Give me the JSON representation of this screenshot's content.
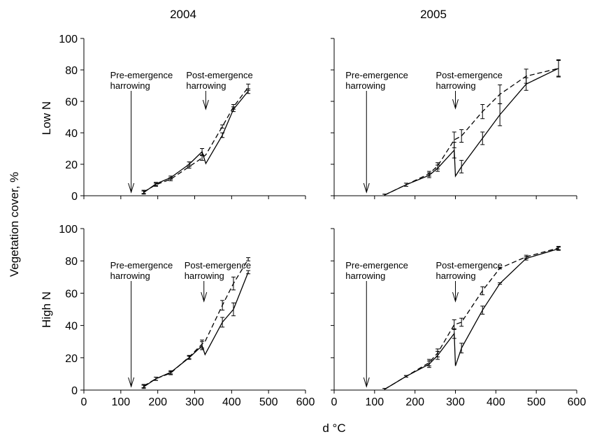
{
  "figure": {
    "ylabel": "Vegetation cover, %",
    "xlabel": "d °C",
    "col_titles": [
      "2004",
      "2005"
    ],
    "row_titles": [
      "Low N",
      "High N"
    ]
  },
  "chart_data": [
    {
      "type": "line",
      "year": "2004",
      "nitrogen": "Low N",
      "xlim": [
        0,
        600
      ],
      "ylim": [
        0,
        100
      ],
      "xticks": [
        0,
        100,
        200,
        300,
        400,
        500,
        600
      ],
      "yticks": [
        0,
        20,
        40,
        60,
        80,
        100
      ],
      "annotations": [
        {
          "lines": [
            "Pre-emergence",
            "harrowing"
          ],
          "x": 128
        },
        {
          "lines": [
            "Post-emergence",
            "harrowing"
          ],
          "x": 330
        }
      ],
      "series": [
        {
          "style": "solid",
          "points": [
            [
              162,
              2
            ],
            [
              195,
              7.5
            ],
            [
              235,
              11.5
            ],
            [
              285,
              20
            ],
            [
              320,
              28
            ],
            [
              330,
              20.5
            ],
            [
              375,
              38.5
            ],
            [
              405,
              55
            ],
            [
              445,
              66.5
            ]
          ],
          "err": [
            1,
            1,
            1,
            1.5,
            2,
            0,
            1.5,
            1.5,
            1.5
          ]
        },
        {
          "style": "dashed",
          "points": [
            [
              162,
              2.5
            ],
            [
              195,
              7
            ],
            [
              235,
              10.5
            ],
            [
              285,
              18.5
            ],
            [
              320,
              24
            ],
            [
              330,
              26
            ],
            [
              375,
              44
            ],
            [
              405,
              56.5
            ],
            [
              445,
              69
            ]
          ],
          "err": [
            1,
            1,
            1,
            1,
            1.5,
            0,
            1,
            1.5,
            2
          ]
        }
      ]
    },
    {
      "type": "line",
      "year": "2005",
      "nitrogen": "Low N",
      "xlim": [
        0,
        600
      ],
      "ylim": [
        0,
        100
      ],
      "xticks": [
        0,
        100,
        200,
        300,
        400,
        500,
        600
      ],
      "yticks": [
        0,
        20,
        40,
        60,
        80,
        100
      ],
      "annotations": [
        {
          "lines": [
            "Pre-emergence",
            "harrowing"
          ],
          "x": 80
        },
        {
          "lines": [
            "Post-emergence",
            "harrowing"
          ],
          "x": 300
        }
      ],
      "series": [
        {
          "style": "solid",
          "points": [
            [
              125,
              0.5
            ],
            [
              178,
              7
            ],
            [
              235,
              13
            ],
            [
              256,
              17.5
            ],
            [
              297,
              29
            ],
            [
              300,
              12.5
            ],
            [
              315,
              18.5
            ],
            [
              367,
              36.5
            ],
            [
              410,
              51.5
            ],
            [
              475,
              71
            ],
            [
              555,
              81
            ]
          ],
          "err": [
            0.5,
            1,
            1.5,
            2,
            5,
            0,
            4,
            4,
            7,
            4,
            5
          ]
        },
        {
          "style": "dashed",
          "points": [
            [
              125,
              0.5
            ],
            [
              178,
              7
            ],
            [
              235,
              14
            ],
            [
              256,
              19
            ],
            [
              297,
              35.5
            ],
            [
              315,
              38
            ],
            [
              367,
              53.5
            ],
            [
              410,
              64.5
            ],
            [
              475,
              76
            ],
            [
              555,
              81
            ]
          ],
          "err": [
            0.5,
            1,
            1.5,
            2,
            5,
            4,
            4.5,
            6,
            4.5,
            5.5
          ]
        }
      ]
    },
    {
      "type": "line",
      "year": "2004",
      "nitrogen": "High N",
      "xlim": [
        0,
        600
      ],
      "ylim": [
        0,
        100
      ],
      "xticks": [
        0,
        100,
        200,
        300,
        400,
        500,
        600
      ],
      "yticks": [
        0,
        20,
        40,
        60,
        80,
        100
      ],
      "annotations": [
        {
          "lines": [
            "Pre-emergence",
            "harrowing"
          ],
          "x": 128
        },
        {
          "lines": [
            "Post-emergence",
            "harrowing"
          ],
          "x": 325
        }
      ],
      "series": [
        {
          "style": "solid",
          "points": [
            [
              162,
              2
            ],
            [
              195,
              7
            ],
            [
              235,
              11
            ],
            [
              285,
              20
            ],
            [
              320,
              27.5
            ],
            [
              328,
              22
            ],
            [
              375,
              42
            ],
            [
              405,
              50
            ],
            [
              445,
              73
            ]
          ],
          "err": [
            1,
            1,
            1,
            1,
            2.5,
            0,
            3,
            4,
            1
          ]
        },
        {
          "style": "dashed",
          "points": [
            [
              162,
              2.5
            ],
            [
              195,
              7
            ],
            [
              235,
              10.5
            ],
            [
              285,
              20.5
            ],
            [
              320,
              28.5
            ],
            [
              328,
              30
            ],
            [
              375,
              52.5
            ],
            [
              405,
              66
            ],
            [
              445,
              81
            ]
          ],
          "err": [
            1,
            1,
            1,
            1,
            2.5,
            0,
            3,
            4,
            1
          ]
        }
      ]
    },
    {
      "type": "line",
      "year": "2005",
      "nitrogen": "High N",
      "xlim": [
        0,
        600
      ],
      "ylim": [
        0,
        100
      ],
      "xticks": [
        0,
        100,
        200,
        300,
        400,
        500,
        600
      ],
      "yticks": [
        0,
        20,
        40,
        60,
        80,
        100
      ],
      "annotations": [
        {
          "lines": [
            "Pre-emergence",
            "harrowing"
          ],
          "x": 80
        },
        {
          "lines": [
            "Post-emergence",
            "harrowing"
          ],
          "x": 300
        }
      ],
      "series": [
        {
          "style": "solid",
          "points": [
            [
              125,
              0.5
            ],
            [
              178,
              8.5
            ],
            [
              235,
              16
            ],
            [
              256,
              21.5
            ],
            [
              297,
              35
            ],
            [
              300,
              15
            ],
            [
              315,
              26
            ],
            [
              367,
              49.5
            ],
            [
              410,
              66
            ],
            [
              475,
              81.5
            ],
            [
              555,
              87.5
            ]
          ],
          "err": [
            0.5,
            0.5,
            2,
            2.5,
            3,
            0,
            3,
            2.5,
            0.5,
            1,
            1
          ]
        },
        {
          "style": "dashed",
          "points": [
            [
              125,
              0.5
            ],
            [
              178,
              8.5
            ],
            [
              235,
              17
            ],
            [
              256,
              23
            ],
            [
              297,
              40.5
            ],
            [
              315,
              42
            ],
            [
              367,
              61.5
            ],
            [
              410,
              75.5
            ],
            [
              475,
              82.5
            ],
            [
              555,
              88
            ]
          ],
          "err": [
            0.5,
            0.5,
            2,
            2.5,
            3,
            2.5,
            2.5,
            0.5,
            1,
            1
          ]
        }
      ]
    }
  ]
}
